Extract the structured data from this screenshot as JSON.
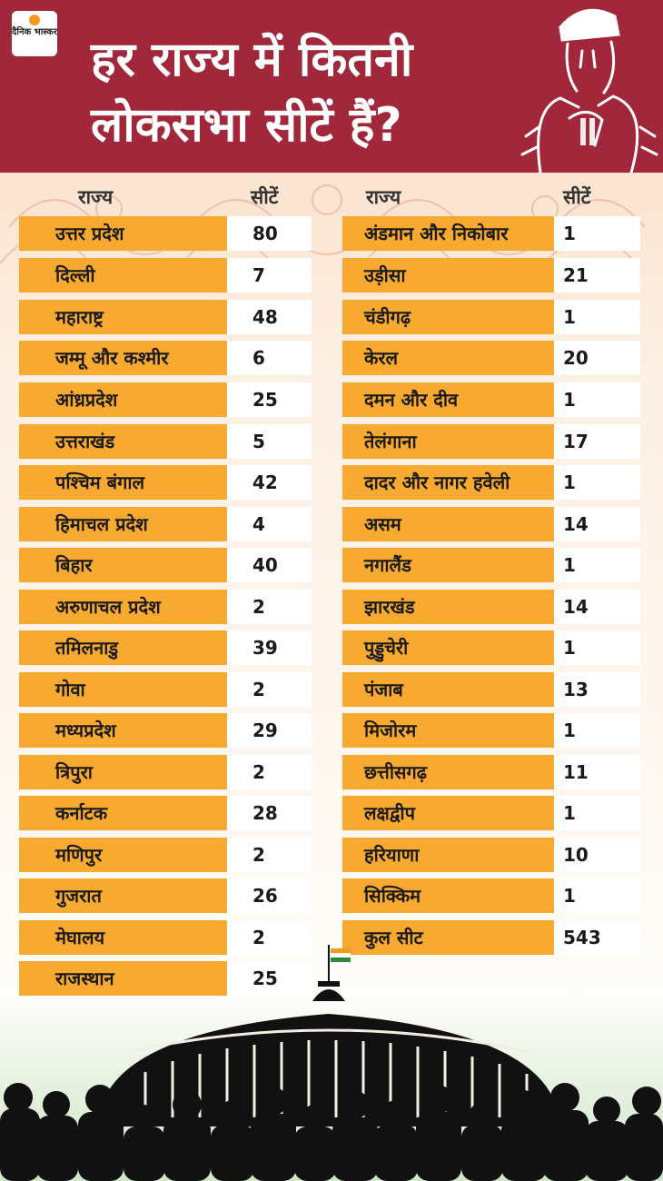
{
  "header": {
    "logo_text": "दैनिक भास्कर",
    "title_line1": "हर राज्य में कितनी",
    "title_line2": "लोकसभा सीटें हैं?"
  },
  "columns": {
    "state_label": "राज्य",
    "seats_label": "सीटें"
  },
  "left_table": [
    {
      "state": "उत्तर प्रदेश",
      "seats": "80"
    },
    {
      "state": "दिल्ली",
      "seats": "7"
    },
    {
      "state": "महाराष्ट्र",
      "seats": "48"
    },
    {
      "state": "जम्मू और कश्मीर",
      "seats": "6"
    },
    {
      "state": "आंध्रप्रदेश",
      "seats": "25"
    },
    {
      "state": "उत्तराखंड",
      "seats": "5"
    },
    {
      "state": "पश्चिम बंगाल",
      "seats": "42"
    },
    {
      "state": "हिमाचल प्रदेश",
      "seats": "4"
    },
    {
      "state": "बिहार",
      "seats": "40"
    },
    {
      "state": "अरुणाचल प्रदेश",
      "seats": "2"
    },
    {
      "state": "तमिलनाडु",
      "seats": "39"
    },
    {
      "state": "गोवा",
      "seats": "2"
    },
    {
      "state": "मध्यप्रदेश",
      "seats": "29"
    },
    {
      "state": "त्रिपुरा",
      "seats": "2"
    },
    {
      "state": "कर्नाटक",
      "seats": "28"
    },
    {
      "state": "मणिपुर",
      "seats": "2"
    },
    {
      "state": "गुजरात",
      "seats": "26"
    },
    {
      "state": "मेघालय",
      "seats": "2"
    },
    {
      "state": "राजस्थान",
      "seats": "25"
    }
  ],
  "right_table": [
    {
      "state": "अंडमान और निकोबार",
      "seats": "1"
    },
    {
      "state": "उड़ीसा",
      "seats": "21"
    },
    {
      "state": "चंडीगढ़",
      "seats": "1"
    },
    {
      "state": "केरल",
      "seats": "20"
    },
    {
      "state": "दमन और दीव",
      "seats": "1"
    },
    {
      "state": "तेलंगाना",
      "seats": "17"
    },
    {
      "state": "दादर और नागर हवेली",
      "seats": "1"
    },
    {
      "state": "असम",
      "seats": "14"
    },
    {
      "state": "नगालैंड",
      "seats": "1"
    },
    {
      "state": "झारखंड",
      "seats": "14"
    },
    {
      "state": "पुड्डुचेरी",
      "seats": "1"
    },
    {
      "state": "पंजाब",
      "seats": "13"
    },
    {
      "state": "मिजोरम",
      "seats": "1"
    },
    {
      "state": "छत्तीसगढ़",
      "seats": "11"
    },
    {
      "state": "लक्षद्वीप",
      "seats": "1"
    },
    {
      "state": "हरियाणा",
      "seats": "10"
    },
    {
      "state": "सिक्किम",
      "seats": "1"
    },
    {
      "state": "कुल सीट",
      "seats": "543"
    }
  ],
  "colors": {
    "header_bg": "#a1283a",
    "state_cell": "#f7a930",
    "seat_cell": "#ffffff",
    "silhouette": "#111111"
  }
}
